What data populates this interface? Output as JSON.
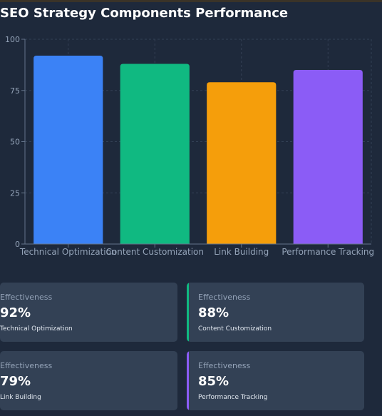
{
  "title": "SEO Strategy Components Performance",
  "colors": {
    "background": "#1e293b",
    "card": "#334155",
    "technical": "#3b82f6",
    "content": "#10b981",
    "links": "#f59e0b",
    "tracking": "#8b5cf6"
  },
  "chart_data": {
    "type": "bar",
    "title": "SEO Strategy Components Performance",
    "categories": [
      "Technical Optimization",
      "Content Customization",
      "Link Building",
      "Performance Tracking"
    ],
    "values": [
      92,
      88,
      79,
      85
    ],
    "colors": [
      "#3b82f6",
      "#10b981",
      "#f59e0b",
      "#8b5cf6"
    ],
    "ylim": [
      0,
      100
    ],
    "yticks": [
      "0",
      "25",
      "50",
      "75",
      "100"
    ],
    "xlabel": "",
    "ylabel": "",
    "grid": true,
    "legend": "none"
  },
  "cards": [
    {
      "label": "Effectiveness",
      "value": "92%",
      "name": "Technical Optimization",
      "accent": "none"
    },
    {
      "label": "Effectiveness",
      "value": "88%",
      "name": "Content Customization",
      "accent": "#10b981"
    },
    {
      "label": "Effectiveness",
      "value": "79%",
      "name": "Link Building",
      "accent": "none"
    },
    {
      "label": "Effectiveness",
      "value": "85%",
      "name": "Performance Tracking",
      "accent": "#8b5cf6"
    }
  ]
}
